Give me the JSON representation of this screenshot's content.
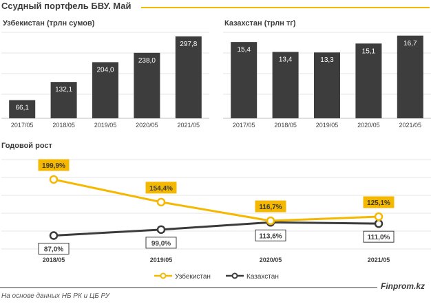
{
  "title": "Ссудный портфель БВУ. Май",
  "source": "На основе данных НБ РК и ЦБ РУ",
  "brand": "Finprom.kz",
  "colors": {
    "bar": "#3d3d3d",
    "accent": "#f5b800",
    "dark": "#3b3b3b",
    "grid": "#e6e6e6"
  },
  "chart_data": [
    {
      "type": "bar",
      "title": "Узбекистан (трлн сумов)",
      "categories": [
        "2017/05",
        "2018/05",
        "2019/05",
        "2020/05",
        "2021/05"
      ],
      "values": [
        66.1,
        132.1,
        204.0,
        238.0,
        297.8
      ],
      "labels": [
        "66,1",
        "132,1",
        "204,0",
        "238,0",
        "297,8"
      ],
      "ylim": [
        0,
        360
      ]
    },
    {
      "type": "bar",
      "title": "Казахстан (трлн тг)",
      "categories": [
        "2017/05",
        "2018/05",
        "2019/05",
        "2020/05",
        "2021/05"
      ],
      "values": [
        15.4,
        13.4,
        13.3,
        15.1,
        16.7
      ],
      "labels": [
        "15,4",
        "13,4",
        "13,3",
        "15,1",
        "16,7"
      ],
      "ylim": [
        0,
        20
      ]
    },
    {
      "type": "line",
      "title": "Годовой рост",
      "categories": [
        "2018/05",
        "2019/05",
        "2020/05",
        "2021/05"
      ],
      "ylim": [
        60,
        240
      ],
      "series": [
        {
          "name": "Узбекистан",
          "values": [
            199.9,
            154.4,
            116.7,
            125.1
          ],
          "labels": [
            "199,9%",
            "154,4%",
            "116,7%",
            "125,1%"
          ],
          "color": "#f5b800"
        },
        {
          "name": "Казахстан",
          "values": [
            87.0,
            99.0,
            113.6,
            111.0
          ],
          "labels": [
            "87,0%",
            "99,0%",
            "113,6%",
            "111,0%"
          ],
          "color": "#3b3b3b"
        }
      ]
    }
  ]
}
